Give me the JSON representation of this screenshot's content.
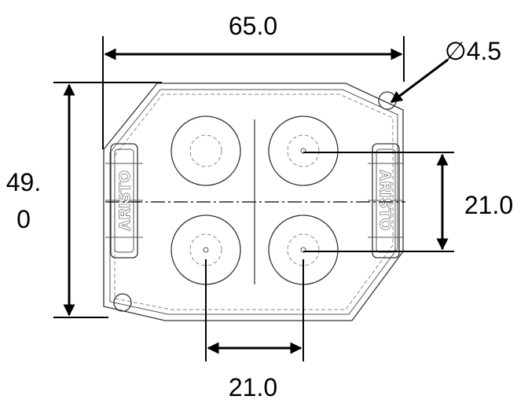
{
  "dimensions": {
    "width": "65.0",
    "height_line1": "49.",
    "height_line2": "0",
    "hole_diameter": "∅4.5",
    "vertical_spacing": "21.0",
    "horizontal_spacing": "21.0"
  },
  "logo_left": "ARISTO",
  "logo_right": "ARISTO"
}
